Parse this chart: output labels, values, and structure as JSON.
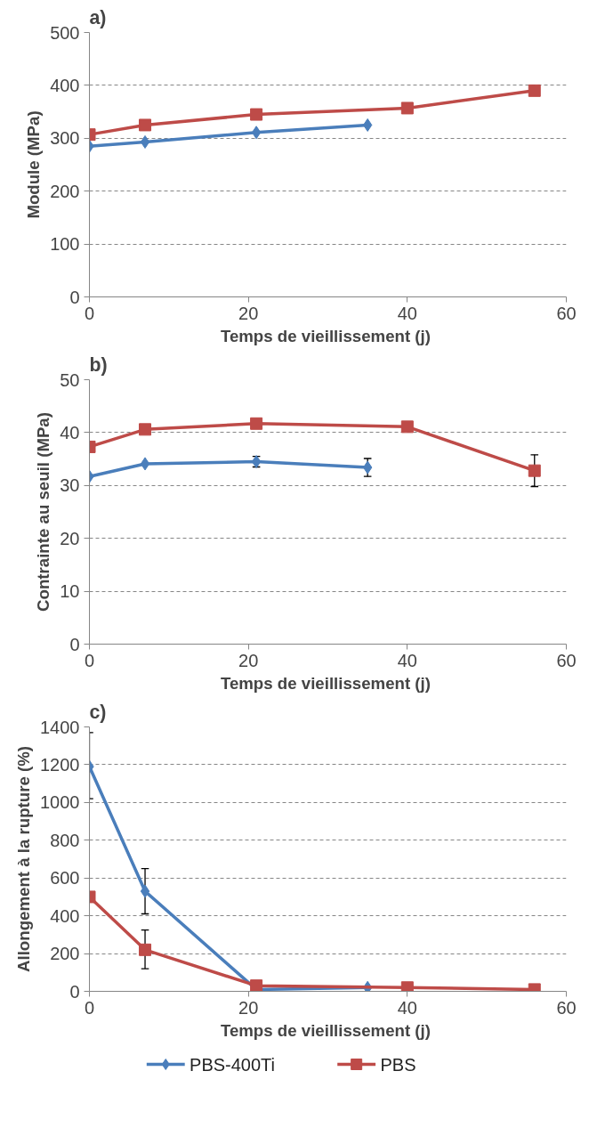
{
  "chart_data": [
    {
      "type": "line",
      "title": "a)",
      "xlabel": "Temps de vieillissement  (j)",
      "ylabel": "Module (MPa)",
      "xlim": [
        0,
        60
      ],
      "xticks": [
        0,
        20,
        40,
        60
      ],
      "ylim": [
        0,
        500
      ],
      "yticks": [
        0,
        100,
        200,
        300,
        400,
        500
      ],
      "grid": "y",
      "legend": false,
      "series": [
        {
          "color": "#4a7ebb",
          "marker": "diamond",
          "x": [
            0,
            7,
            21,
            35
          ],
          "values": [
            285,
            293,
            311,
            325
          ]
        },
        {
          "color": "#be4b48",
          "marker": "square",
          "x": [
            0,
            7,
            21,
            40,
            56
          ],
          "values": [
            307,
            325,
            345,
            357,
            390
          ]
        }
      ]
    },
    {
      "type": "line",
      "title": "b)",
      "xlabel": "Temps de vieillissement  (j)",
      "ylabel": "Contrainte au seuil (MPa)",
      "xlim": [
        0,
        60
      ],
      "xticks": [
        0,
        20,
        40,
        60
      ],
      "ylim": [
        0,
        50
      ],
      "yticks": [
        0,
        10,
        20,
        30,
        40,
        50
      ],
      "grid": "y",
      "legend": false,
      "series": [
        {
          "color": "#4a7ebb",
          "marker": "diamond",
          "x": [
            0,
            7,
            21,
            35
          ],
          "values": [
            31.7,
            34.1,
            34.5,
            33.4
          ],
          "errors": [
            null,
            null,
            1,
            1.7
          ]
        },
        {
          "color": "#be4b48",
          "marker": "square",
          "x": [
            0,
            7,
            21,
            40,
            56
          ],
          "values": [
            37.3,
            40.6,
            41.7,
            41.1,
            32.8
          ],
          "errors": [
            null,
            null,
            null,
            null,
            3
          ]
        }
      ]
    },
    {
      "type": "line",
      "title": "c)",
      "xlabel": "Temps de vieillissement  (j)",
      "ylabel": "Allongement à la rupture (%)",
      "xlim": [
        0,
        60
      ],
      "xticks": [
        0,
        20,
        40,
        60
      ],
      "ylim": [
        0,
        1400
      ],
      "yticks": [
        0,
        200,
        400,
        600,
        800,
        1000,
        1200,
        1400
      ],
      "grid": "y",
      "legend": "bottom",
      "series": [
        {
          "name": "PBS-400Ti",
          "color": "#4a7ebb",
          "marker": "diamond",
          "x": [
            0,
            7,
            21,
            35
          ],
          "values": [
            1190,
            530,
            10,
            20
          ],
          "errors": [
            [
              1020,
              1370
            ],
            [
              410,
              650
            ],
            null,
            null
          ]
        },
        {
          "name": "PBS",
          "color": "#be4b48",
          "marker": "square",
          "x": [
            0,
            7,
            21,
            40,
            56
          ],
          "values": [
            500,
            220,
            30,
            20,
            10
          ],
          "errors": [
            null,
            [
              120,
              325
            ],
            null,
            null,
            null
          ]
        }
      ]
    }
  ]
}
